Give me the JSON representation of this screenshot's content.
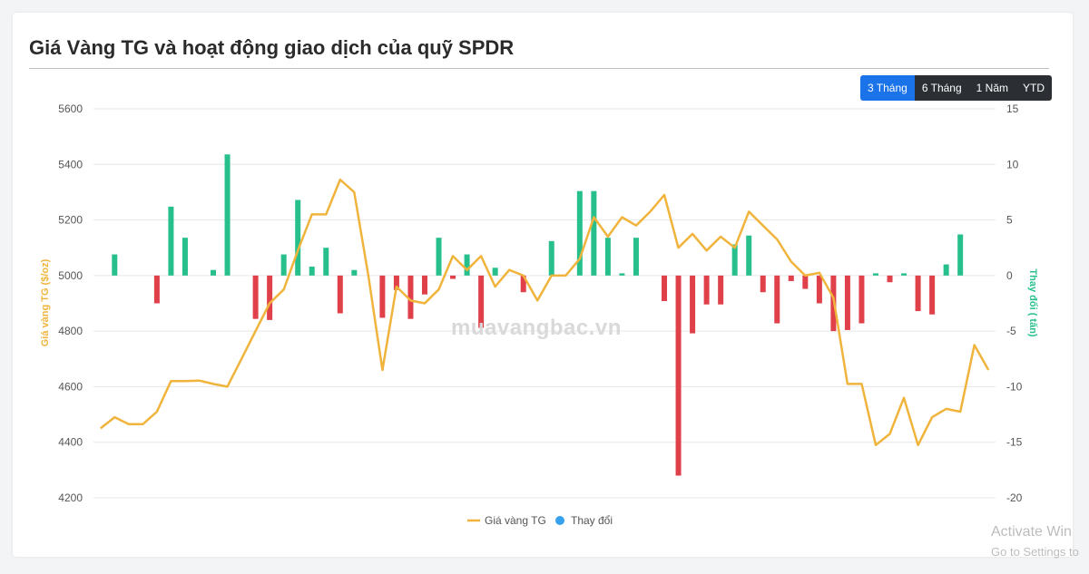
{
  "title": "Giá Vàng TG và hoạt động giao dịch của quỹ SPDR",
  "range_buttons": [
    {
      "label": "3 Tháng",
      "active": true
    },
    {
      "label": "6 Tháng",
      "active": false
    },
    {
      "label": "1 Năm",
      "active": false
    },
    {
      "label": "YTD",
      "active": false
    }
  ],
  "watermark": "muavangbac.vn",
  "windows_notice": {
    "title": "Activate Win",
    "subtitle": "Go to Settings to"
  },
  "colors": {
    "gold_line": "#f0b43c",
    "positive_bar": "#27c08d",
    "negative_bar": "#e0404a",
    "active_button": "#1a73e8",
    "button": "#2b2f33"
  },
  "chart_data": {
    "type": "bar+line",
    "y_left": {
      "label": "Giá vàng TG ($/oz)",
      "ticks": [
        "5600",
        "5400",
        "5200",
        "5000",
        "4800",
        "4600",
        "4400",
        "4200"
      ],
      "range": [
        4200,
        5600
      ]
    },
    "y_right": {
      "label": "Thay đổi ( tấn)",
      "ticks": [
        "15",
        "10",
        "5",
        "0",
        "-5",
        "-10",
        "-15",
        "-20"
      ],
      "range": [
        -20,
        15
      ]
    },
    "legend": [
      {
        "name": "Giá vàng TG",
        "marker": "line",
        "color": "#f0b43c"
      },
      {
        "name": "Thay đổi",
        "marker": "circle",
        "color": "#36a2eb"
      }
    ],
    "legend_position": "bottom",
    "grid": true,
    "series": [
      {
        "name": "Giá vàng TG",
        "axis": "left",
        "type": "line",
        "values": [
          4450,
          4490,
          4465,
          4465,
          4510,
          4620,
          4620,
          4622,
          4610,
          4600,
          4700,
          4800,
          4900,
          4950,
          5090,
          5220,
          5220,
          5345,
          5300,
          5000,
          4660,
          4960,
          4910,
          4900,
          4950,
          5070,
          5020,
          5070,
          4960,
          5020,
          5000,
          4910,
          5000,
          5000,
          5060,
          5210,
          5140,
          5210,
          5180,
          5230,
          5290,
          5100,
          5150,
          5090,
          5140,
          5100,
          5230,
          5180,
          5130,
          5050,
          5000,
          5010,
          4920,
          4610,
          4610,
          4390,
          4430,
          4560,
          4390,
          4490,
          4520,
          4510,
          4750,
          4660
        ]
      },
      {
        "name": "Thay đổi",
        "axis": "right",
        "type": "bar",
        "values": [
          0,
          1.9,
          0,
          0,
          -2.5,
          6.2,
          3.4,
          0,
          0.5,
          10.9,
          0,
          -3.9,
          -4.0,
          1.9,
          6.8,
          0.8,
          2.5,
          -3.4,
          0.5,
          0,
          -3.8,
          -1.3,
          -3.9,
          -1.7,
          3.4,
          -0.3,
          1.9,
          -4.7,
          0.7,
          0,
          -1.5,
          0,
          3.1,
          0,
          7.6,
          7.6,
          3.4,
          0.2,
          3.4,
          0,
          -2.3,
          -18,
          -5.2,
          -2.6,
          -2.6,
          2.8,
          3.6,
          -1.5,
          -4.3,
          -0.5,
          -1.2,
          -2.5,
          -5,
          -4.9,
          -4.3,
          0.2,
          -0.6,
          0.2,
          -3.2,
          -3.5,
          1,
          3.7,
          0,
          0
        ]
      }
    ]
  }
}
